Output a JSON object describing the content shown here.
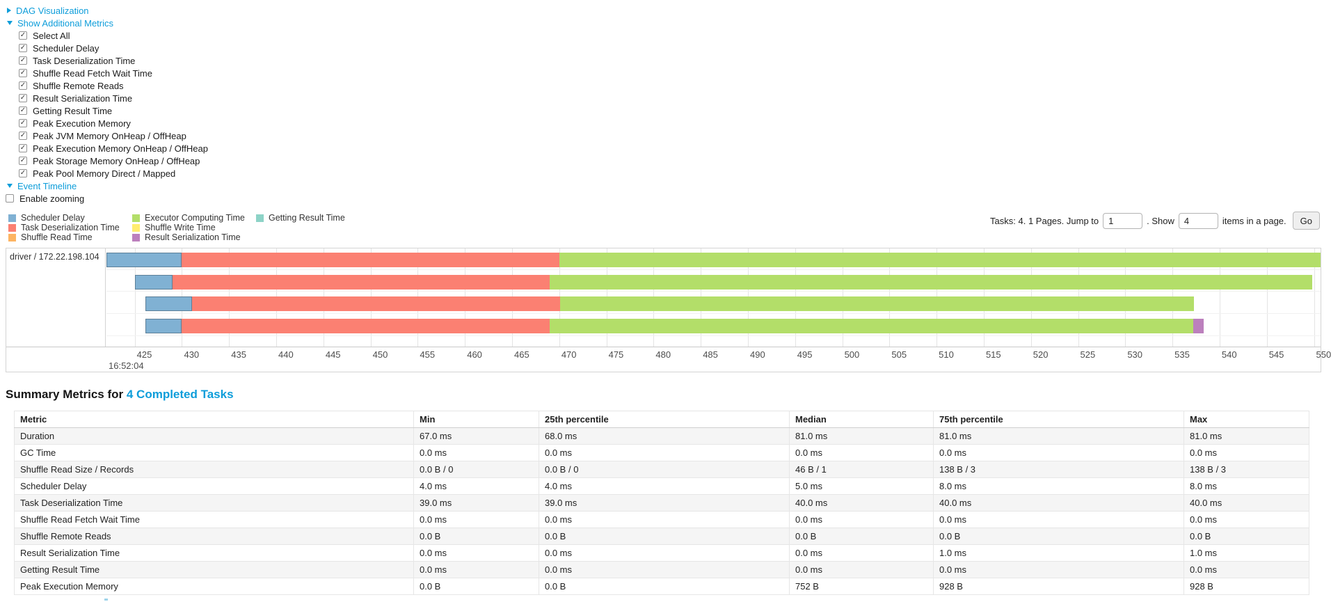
{
  "colors": {
    "link": "#0d9dda"
  },
  "toggles": {
    "dag_label": "DAG Visualization",
    "metrics_label": "Show Additional Metrics",
    "timeline_label": "Event Timeline"
  },
  "metrics_panel": {
    "items": [
      {
        "label": "Select All",
        "checked": true
      },
      {
        "label": "Scheduler Delay",
        "checked": true
      },
      {
        "label": "Task Deserialization Time",
        "checked": true
      },
      {
        "label": "Shuffle Read Fetch Wait Time",
        "checked": true
      },
      {
        "label": "Shuffle Remote Reads",
        "checked": true
      },
      {
        "label": "Result Serialization Time",
        "checked": true
      },
      {
        "label": "Getting Result Time",
        "checked": true
      },
      {
        "label": "Peak Execution Memory",
        "checked": true
      },
      {
        "label": "Peak JVM Memory OnHeap / OffHeap",
        "checked": true
      },
      {
        "label": "Peak Execution Memory OnHeap / OffHeap",
        "checked": true
      },
      {
        "label": "Peak Storage Memory OnHeap / OffHeap",
        "checked": true
      },
      {
        "label": "Peak Pool Memory Direct / Mapped",
        "checked": true
      }
    ]
  },
  "enable_zooming": {
    "label": "Enable zooming",
    "checked": false
  },
  "pagination": {
    "prefix_text": "Tasks: 4. 1 Pages. Jump to",
    "jump_value": "1",
    "mid_text": ". Show",
    "show_value": "4",
    "suffix_text": "items in a page.",
    "go_label": "Go"
  },
  "chart_data": {
    "type": "timeline",
    "title": "Event Timeline",
    "group_label": "driver / 172.22.198.104",
    "x_axis": {
      "window_start": 422.0,
      "window_end": 550.7,
      "tick_start": 425,
      "tick_end": 550,
      "tick_step": 5,
      "major_label": "16:52:04",
      "units": "milliseconds within 16:52:04"
    },
    "legend": [
      {
        "label": "Scheduler Delay",
        "color": "#80B1D3"
      },
      {
        "label": "Task Deserialization Time",
        "color": "#FB8072"
      },
      {
        "label": "Shuffle Read Time",
        "color": "#FDB462"
      },
      {
        "label": "Executor Computing Time",
        "color": "#B3DE69"
      },
      {
        "label": "Shuffle Write Time",
        "color": "#FFED6F"
      },
      {
        "label": "Result Serialization Time",
        "color": "#BC80BD"
      },
      {
        "label": "Getting Result Time",
        "color": "#8DD3C7"
      }
    ],
    "legend_columns": [
      [
        0,
        1,
        2
      ],
      [
        3,
        4,
        5
      ],
      [
        6
      ]
    ],
    "tasks": [
      {
        "segments": [
          {
            "name": "Scheduler Delay",
            "start": 422.0,
            "end": 430.0
          },
          {
            "name": "Task Deserialization Time",
            "start": 430.0,
            "end": 470.0
          },
          {
            "name": "Executor Computing Time",
            "start": 470.0,
            "end": 550.7
          }
        ]
      },
      {
        "segments": [
          {
            "name": "Scheduler Delay",
            "start": 425.0,
            "end": 429.0
          },
          {
            "name": "Task Deserialization Time",
            "start": 429.0,
            "end": 469.0
          },
          {
            "name": "Executor Computing Time",
            "start": 469.0,
            "end": 549.8
          }
        ]
      },
      {
        "segments": [
          {
            "name": "Scheduler Delay",
            "start": 426.1,
            "end": 431.1
          },
          {
            "name": "Task Deserialization Time",
            "start": 431.1,
            "end": 470.1
          },
          {
            "name": "Executor Computing Time",
            "start": 470.1,
            "end": 537.3
          }
        ]
      },
      {
        "segments": [
          {
            "name": "Scheduler Delay",
            "start": 426.1,
            "end": 430.0
          },
          {
            "name": "Task Deserialization Time",
            "start": 430.0,
            "end": 469.0
          },
          {
            "name": "Executor Computing Time",
            "start": 469.0,
            "end": 537.2
          },
          {
            "name": "Result Serialization Time",
            "start": 537.2,
            "end": 538.3
          }
        ]
      }
    ]
  },
  "summary": {
    "title_prefix": "Summary Metrics for",
    "title_link": "4 Completed Tasks",
    "columns": [
      "Metric",
      "Min",
      "25th percentile",
      "Median",
      "75th percentile",
      "Max"
    ],
    "rows": [
      {
        "metric": "Duration",
        "values": [
          "67.0 ms",
          "68.0 ms",
          "81.0 ms",
          "81.0 ms",
          "81.0 ms"
        ]
      },
      {
        "metric": "GC Time",
        "values": [
          "0.0 ms",
          "0.0 ms",
          "0.0 ms",
          "0.0 ms",
          "0.0 ms"
        ]
      },
      {
        "metric": "Shuffle Read Size / Records",
        "values": [
          "0.0 B / 0",
          "0.0 B / 0",
          "46 B / 1",
          "138 B / 3",
          "138 B / 3"
        ]
      },
      {
        "metric": "Scheduler Delay",
        "values": [
          "4.0 ms",
          "4.0 ms",
          "5.0 ms",
          "8.0 ms",
          "8.0 ms"
        ]
      },
      {
        "metric": "Task Deserialization Time",
        "values": [
          "39.0 ms",
          "39.0 ms",
          "40.0 ms",
          "40.0 ms",
          "40.0 ms"
        ]
      },
      {
        "metric": "Shuffle Read Fetch Wait Time",
        "values": [
          "0.0 ms",
          "0.0 ms",
          "0.0 ms",
          "0.0 ms",
          "0.0 ms"
        ]
      },
      {
        "metric": "Shuffle Remote Reads",
        "values": [
          "0.0 B",
          "0.0 B",
          "0.0 B",
          "0.0 B",
          "0.0 B"
        ]
      },
      {
        "metric": "Result Serialization Time",
        "values": [
          "0.0 ms",
          "0.0 ms",
          "0.0 ms",
          "1.0 ms",
          "1.0 ms"
        ]
      },
      {
        "metric": "Getting Result Time",
        "values": [
          "0.0 ms",
          "0.0 ms",
          "0.0 ms",
          "0.0 ms",
          "0.0 ms"
        ]
      },
      {
        "metric": "Peak Execution Memory",
        "values": [
          "0.0 B",
          "0.0 B",
          "752 B",
          "928 B",
          "928 B"
        ]
      }
    ]
  }
}
